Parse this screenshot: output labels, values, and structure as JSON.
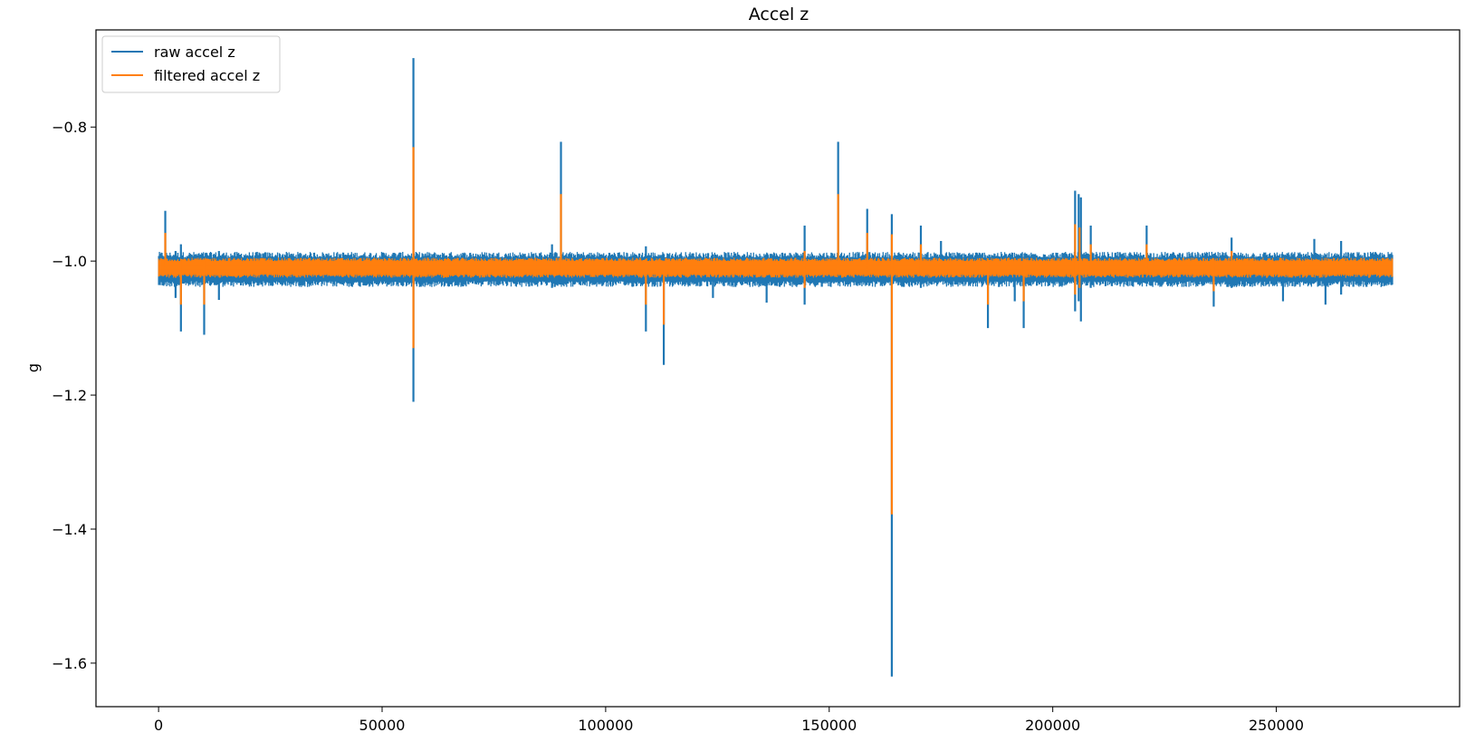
{
  "chart_data": {
    "type": "line",
    "title": "Accel z",
    "xlabel": "",
    "ylabel": "g",
    "xlim": [
      -14000,
      291000
    ],
    "ylim": [
      -1.665,
      -0.655
    ],
    "grid": false,
    "legend_position": "upper-left",
    "x_ticks": [
      {
        "value": 0,
        "label": "0"
      },
      {
        "value": 50000,
        "label": "50000"
      },
      {
        "value": 100000,
        "label": "100000"
      },
      {
        "value": 150000,
        "label": "150000"
      },
      {
        "value": 200000,
        "label": "200000"
      },
      {
        "value": 250000,
        "label": "250000"
      }
    ],
    "y_ticks": [
      {
        "value": -0.8,
        "label": "−0.8"
      },
      {
        "value": -1.0,
        "label": "−1.0"
      },
      {
        "value": -1.2,
        "label": "−1.2"
      },
      {
        "value": -1.4,
        "label": "−1.4"
      },
      {
        "value": -1.6,
        "label": "−1.6"
      }
    ],
    "x_range": [
      0,
      276000
    ],
    "series": [
      {
        "name": "raw accel z",
        "color": "#1f77b4",
        "baseline": -1.01,
        "band_low": -1.03,
        "band_high": -0.995,
        "spikes": [
          {
            "x": 1500,
            "low": -1.01,
            "high": -0.925
          },
          {
            "x": 3800,
            "low": -1.055,
            "high": -0.985
          },
          {
            "x": 5000,
            "low": -1.105,
            "high": -0.975
          },
          {
            "x": 10200,
            "low": -1.11,
            "high": -0.995
          },
          {
            "x": 13500,
            "low": -1.058,
            "high": -0.985
          },
          {
            "x": 57000,
            "low": -1.21,
            "high": -0.697
          },
          {
            "x": 88000,
            "low": -1.04,
            "high": -0.975
          },
          {
            "x": 90000,
            "low": -1.03,
            "high": -0.822
          },
          {
            "x": 109000,
            "low": -1.105,
            "high": -0.978
          },
          {
            "x": 113000,
            "low": -1.155,
            "high": -0.99
          },
          {
            "x": 124000,
            "low": -1.055,
            "high": -0.99
          },
          {
            "x": 136000,
            "low": -1.062,
            "high": -0.99
          },
          {
            "x": 144500,
            "low": -1.065,
            "high": -0.947
          },
          {
            "x": 152000,
            "low": -1.03,
            "high": -0.822
          },
          {
            "x": 158500,
            "low": -1.03,
            "high": -0.922
          },
          {
            "x": 164000,
            "low": -1.62,
            "high": -0.93
          },
          {
            "x": 170500,
            "low": -1.04,
            "high": -0.947
          },
          {
            "x": 175000,
            "low": -1.03,
            "high": -0.97
          },
          {
            "x": 185500,
            "low": -1.1,
            "high": -1.0
          },
          {
            "x": 191500,
            "low": -1.06,
            "high": -1.0
          },
          {
            "x": 193500,
            "low": -1.1,
            "high": -0.995
          },
          {
            "x": 205000,
            "low": -1.075,
            "high": -0.895
          },
          {
            "x": 205800,
            "low": -1.06,
            "high": -0.9
          },
          {
            "x": 206300,
            "low": -1.09,
            "high": -0.905
          },
          {
            "x": 208500,
            "low": -1.04,
            "high": -0.947
          },
          {
            "x": 221000,
            "low": -1.03,
            "high": -0.947
          },
          {
            "x": 236000,
            "low": -1.068,
            "high": -0.99
          },
          {
            "x": 240000,
            "low": -1.04,
            "high": -0.965
          },
          {
            "x": 251500,
            "low": -1.06,
            "high": -0.99
          },
          {
            "x": 258500,
            "low": -1.03,
            "high": -0.967
          },
          {
            "x": 261000,
            "low": -1.065,
            "high": -0.99
          },
          {
            "x": 264500,
            "low": -1.05,
            "high": -0.97
          }
        ]
      },
      {
        "name": "filtered accel z",
        "color": "#ff7f0e",
        "baseline": -1.01,
        "band_low": -1.02,
        "band_high": -1.0,
        "spikes": [
          {
            "x": 1500,
            "low": -1.01,
            "high": -0.958
          },
          {
            "x": 5000,
            "low": -1.065,
            "high": -1.0
          },
          {
            "x": 10200,
            "low": -1.065,
            "high": -1.0
          },
          {
            "x": 57000,
            "low": -1.13,
            "high": -0.83
          },
          {
            "x": 90000,
            "low": -1.02,
            "high": -0.9
          },
          {
            "x": 109000,
            "low": -1.065,
            "high": -1.0
          },
          {
            "x": 113000,
            "low": -1.095,
            "high": -1.0
          },
          {
            "x": 144500,
            "low": -1.04,
            "high": -0.985
          },
          {
            "x": 152000,
            "low": -1.02,
            "high": -0.9
          },
          {
            "x": 158500,
            "low": -1.02,
            "high": -0.958
          },
          {
            "x": 164000,
            "low": -1.378,
            "high": -0.96
          },
          {
            "x": 170500,
            "low": -1.02,
            "high": -0.975
          },
          {
            "x": 185500,
            "low": -1.065,
            "high": -1.0
          },
          {
            "x": 193500,
            "low": -1.06,
            "high": -1.0
          },
          {
            "x": 205000,
            "low": -1.05,
            "high": -0.945
          },
          {
            "x": 206000,
            "low": -1.04,
            "high": -0.95
          },
          {
            "x": 208500,
            "low": -1.02,
            "high": -0.975
          },
          {
            "x": 221000,
            "low": -1.02,
            "high": -0.975
          },
          {
            "x": 236000,
            "low": -1.045,
            "high": -1.0
          },
          {
            "x": 240000,
            "low": -1.02,
            "high": -0.985
          }
        ]
      }
    ]
  }
}
